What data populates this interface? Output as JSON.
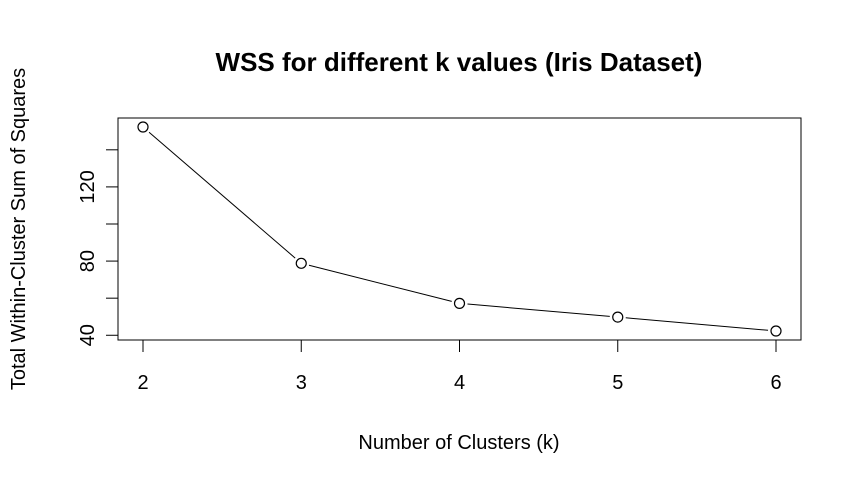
{
  "chart_data": {
    "type": "line",
    "title": "WSS for different k values (Iris Dataset)",
    "xlabel": "Number of Clusters (k)",
    "ylabel": "Total Within-Cluster Sum of Squares",
    "x": [
      2,
      3,
      4,
      5,
      6
    ],
    "y": [
      152.3,
      78.8,
      57.2,
      49.8,
      42.3
    ],
    "xlim": [
      2,
      6
    ],
    "ylim": [
      42.3,
      152.3
    ],
    "xticks": [
      2,
      3,
      4,
      5,
      6
    ],
    "yticks": [
      40,
      60,
      80,
      100,
      120,
      140
    ],
    "ytick_labels": [
      "40",
      "",
      "80",
      "",
      "120",
      ""
    ],
    "marker": "open-circle",
    "line_color": "#000000",
    "grid": false
  }
}
